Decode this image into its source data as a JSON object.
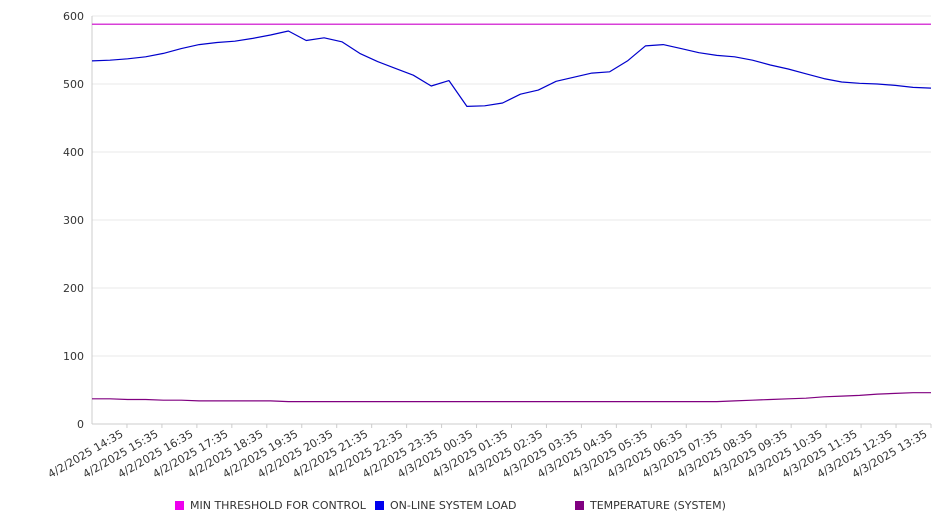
{
  "chart_data": {
    "type": "line",
    "title": "",
    "xlabel": "",
    "ylabel": "",
    "ylim": [
      0,
      600
    ],
    "yticks": [
      0,
      100,
      200,
      300,
      400,
      500,
      600
    ],
    "grid": "horizontal",
    "legend_position": "bottom",
    "x_tick_labels": [
      "4/2/2025 14:35",
      "4/2/2025 15:35",
      "4/2/2025 16:35",
      "4/2/2025 17:35",
      "4/2/2025 18:35",
      "4/2/2025 19:35",
      "4/2/2025 20:35",
      "4/2/2025 21:35",
      "4/2/2025 22:35",
      "4/2/2025 23:35",
      "4/3/2025 00:35",
      "4/3/2025 01:35",
      "4/3/2025 02:35",
      "4/3/2025 03:35",
      "4/3/2025 04:35",
      "4/3/2025 05:35",
      "4/3/2025 06:35",
      "4/3/2025 07:35",
      "4/3/2025 08:35",
      "4/3/2025 09:35",
      "4/3/2025 10:35",
      "4/3/2025 11:35",
      "4/3/2025 12:35",
      "4/3/2025 13:35"
    ],
    "x": [
      "4/2/2025 14:35",
      "4/2/2025 15:05",
      "4/2/2025 15:35",
      "4/2/2025 16:05",
      "4/2/2025 16:35",
      "4/2/2025 17:05",
      "4/2/2025 17:35",
      "4/2/2025 18:05",
      "4/2/2025 18:35",
      "4/2/2025 19:05",
      "4/2/2025 19:35",
      "4/2/2025 20:05",
      "4/2/2025 20:35",
      "4/2/2025 21:05",
      "4/2/2025 21:35",
      "4/2/2025 22:05",
      "4/2/2025 22:35",
      "4/2/2025 23:05",
      "4/2/2025 23:35",
      "4/3/2025 00:05",
      "4/3/2025 00:35",
      "4/3/2025 01:05",
      "4/3/2025 01:35",
      "4/3/2025 02:05",
      "4/3/2025 02:35",
      "4/3/2025 03:05",
      "4/3/2025 03:35",
      "4/3/2025 04:05",
      "4/3/2025 04:35",
      "4/3/2025 05:05",
      "4/3/2025 05:35",
      "4/3/2025 06:05",
      "4/3/2025 06:35",
      "4/3/2025 07:05",
      "4/3/2025 07:35",
      "4/3/2025 08:05",
      "4/3/2025 08:35",
      "4/3/2025 09:05",
      "4/3/2025 09:35",
      "4/3/2025 10:05",
      "4/3/2025 10:35",
      "4/3/2025 11:05",
      "4/3/2025 11:35",
      "4/3/2025 12:05",
      "4/3/2025 12:35",
      "4/3/2025 13:05",
      "4/3/2025 13:35",
      "4/3/2025 14:05"
    ],
    "series": [
      {
        "name": "MIN THRESHOLD FOR CONTROL",
        "color": "#cc00cc",
        "values": [
          588,
          588,
          588,
          588,
          588,
          588,
          588,
          588,
          588,
          588,
          588,
          588,
          588,
          588,
          588,
          588,
          588,
          588,
          588,
          588,
          588,
          588,
          588,
          588,
          588,
          588,
          588,
          588,
          588,
          588,
          588,
          588,
          588,
          588,
          588,
          588,
          588,
          588,
          588,
          588,
          588,
          588,
          588,
          588,
          588,
          588,
          588,
          588
        ]
      },
      {
        "name": "ON-LINE SYSTEM LOAD",
        "color": "#0000cc",
        "values": [
          534,
          535,
          537,
          540,
          545,
          552,
          558,
          561,
          563,
          567,
          572,
          578,
          564,
          568,
          562,
          545,
          533,
          523,
          513,
          497,
          505,
          467,
          468,
          472,
          485,
          491,
          504,
          510,
          516,
          518,
          534,
          556,
          558,
          552,
          546,
          542,
          540,
          535,
          528,
          522,
          515,
          508,
          503,
          501,
          500,
          498,
          495,
          494
        ]
      },
      {
        "name": "TEMPERATURE (SYSTEM)",
        "color": "#800080",
        "values": [
          37,
          37,
          36,
          36,
          35,
          35,
          34,
          34,
          34,
          34,
          34,
          33,
          33,
          33,
          33,
          33,
          33,
          33,
          33,
          33,
          33,
          33,
          33,
          33,
          33,
          33,
          33,
          33,
          33,
          33,
          33,
          33,
          33,
          33,
          33,
          33,
          34,
          35,
          36,
          37,
          38,
          40,
          41,
          42,
          44,
          45,
          46,
          46
        ]
      }
    ]
  }
}
